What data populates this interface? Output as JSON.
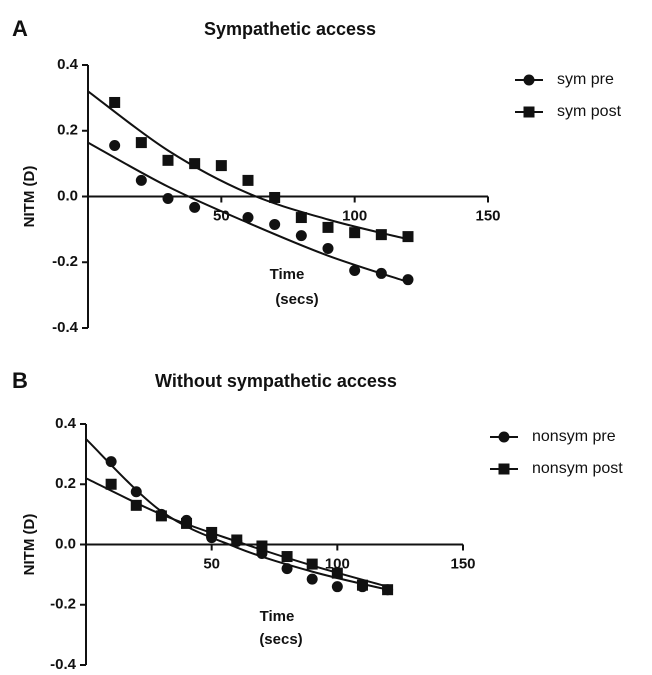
{
  "chart_data": [
    {
      "type": "scatter",
      "panel": "A",
      "title": "Sympathetic access",
      "y_label": "NITM (D)",
      "x_label": [
        "Time",
        "(secs)"
      ],
      "xlim": [
        0,
        150
      ],
      "xticks": [
        50,
        100,
        150
      ],
      "ylim": [
        -0.4,
        0.4
      ],
      "yticks": [
        0.4,
        0.2,
        {
          "value": 0,
          "label": "0.0"
        },
        -0.2,
        -0.4
      ],
      "series": [
        {
          "name": "sym pre",
          "marker": "circle",
          "color": "#111111",
          "x": [
            10,
            20,
            30,
            40,
            60,
            70,
            80,
            90,
            100,
            110,
            120
          ],
          "values": [
            0.155,
            0.049,
            -0.006,
            -0.033,
            -0.064,
            -0.085,
            -0.119,
            -0.158,
            -0.225,
            -0.234,
            -0.253
          ],
          "fit": {
            "x": [
              0,
              30,
              60,
              90,
              120
            ],
            "values": [
              0.164,
              0.03,
              -0.08,
              -0.18,
              -0.26
            ]
          }
        },
        {
          "name": "sym post",
          "marker": "square",
          "color": "#111111",
          "x": [
            10,
            20,
            30,
            40,
            50,
            60,
            70,
            80,
            90,
            100,
            110,
            120
          ],
          "values": [
            0.286,
            0.164,
            0.11,
            0.1,
            0.094,
            0.049,
            -0.003,
            -0.064,
            -0.094,
            -0.11,
            -0.116,
            -0.122
          ],
          "fit": {
            "x": [
              0,
              30,
              60,
              90,
              120
            ],
            "values": [
              0.32,
              0.14,
              0.01,
              -0.07,
              -0.13
            ]
          }
        }
      ]
    },
    {
      "type": "scatter",
      "panel": "B",
      "title": "Without sympathetic access",
      "y_label": "NITM (D)",
      "x_label": [
        "Time",
        "(secs)"
      ],
      "xlim": [
        0,
        150
      ],
      "xticks": [
        50,
        100,
        150
      ],
      "ylim": [
        -0.4,
        0.4
      ],
      "yticks": [
        0.4,
        0.2,
        {
          "value": 0,
          "label": "0.0"
        },
        -0.2,
        -0.4
      ],
      "series": [
        {
          "name": "nonsym pre",
          "marker": "circle",
          "color": "#111111",
          "x": [
            10,
            20,
            30,
            40,
            50,
            60,
            70,
            80,
            90,
            100,
            110,
            120
          ],
          "values": [
            0.275,
            0.175,
            0.1,
            0.08,
            0.023,
            0.01,
            -0.03,
            -0.08,
            -0.115,
            -0.14,
            -0.14,
            -0.15
          ],
          "fit": {
            "x": [
              0,
              30,
              60,
              90,
              120
            ],
            "values": [
              0.35,
              0.11,
              -0.01,
              -0.09,
              -0.15
            ]
          }
        },
        {
          "name": "nonsym post",
          "marker": "square",
          "color": "#111111",
          "x": [
            10,
            20,
            30,
            40,
            50,
            60,
            70,
            80,
            90,
            100,
            110,
            120
          ],
          "values": [
            0.2,
            0.13,
            0.095,
            0.07,
            0.04,
            0.015,
            -0.005,
            -0.04,
            -0.065,
            -0.095,
            -0.135,
            -0.15
          ],
          "fit": {
            "x": [
              0,
              30,
              60,
              90,
              120
            ],
            "values": [
              0.22,
              0.1,
              0.01,
              -0.07,
              -0.14
            ]
          }
        }
      ]
    }
  ]
}
